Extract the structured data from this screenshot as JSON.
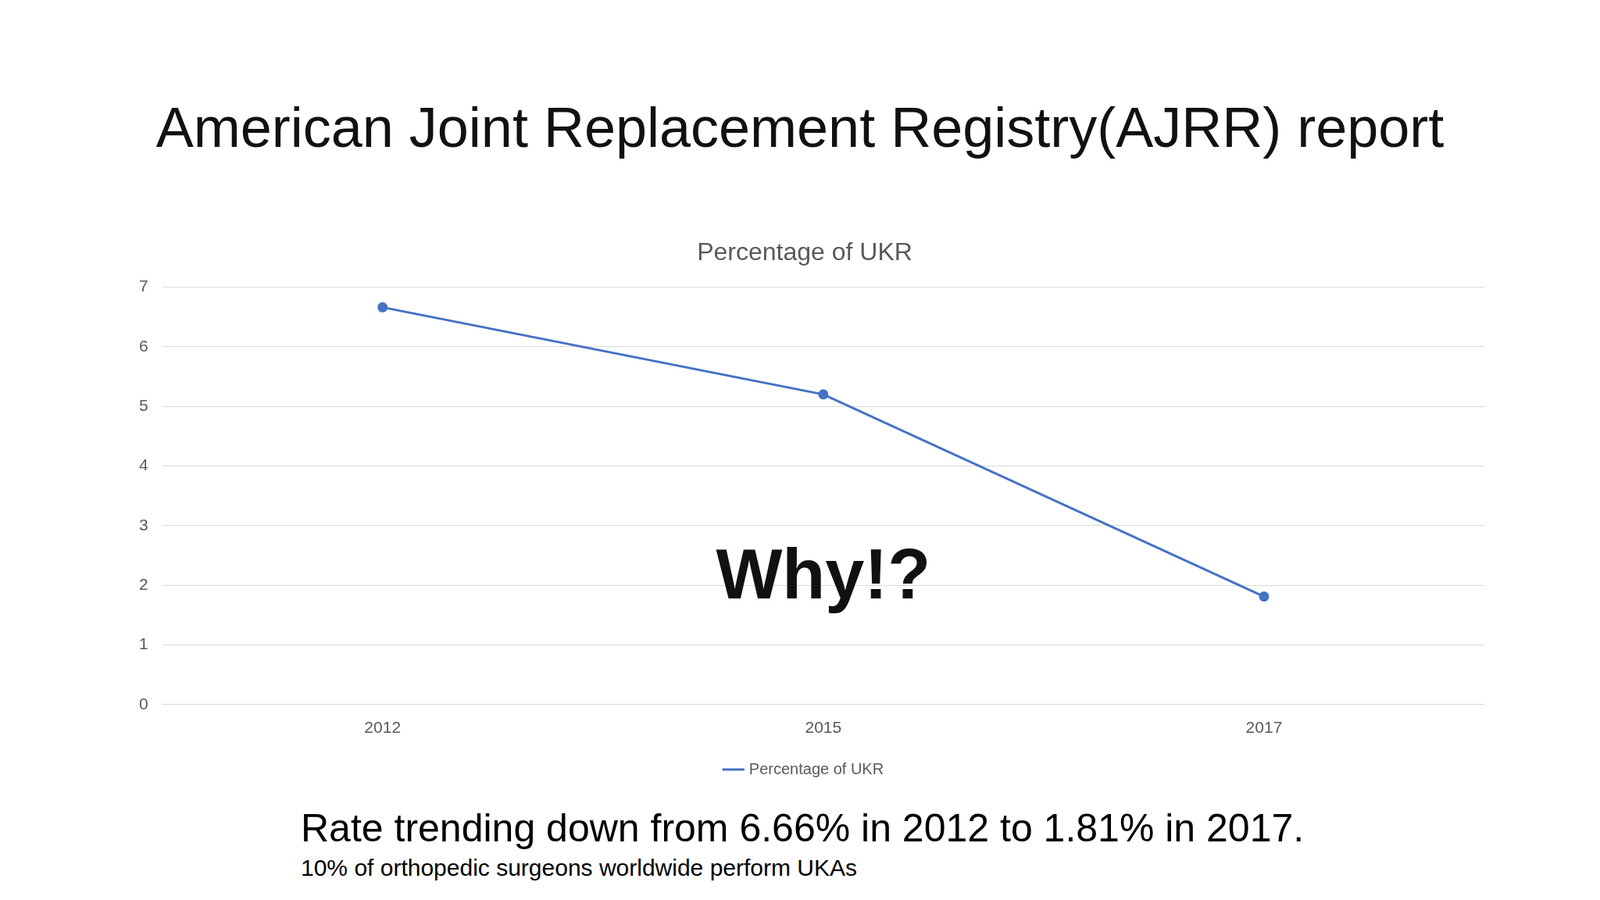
{
  "slide_title": "American Joint Replacement Registry(AJRR) report",
  "chart_data": {
    "type": "line",
    "title": "Percentage of UKR",
    "categories": [
      "2012",
      "2015",
      "2017"
    ],
    "series": [
      {
        "name": "Percentage of UKR",
        "color": "#4472c4",
        "values": [
          6.66,
          5.2,
          1.81
        ],
        "marker": "circle"
      }
    ],
    "ylim": [
      0,
      7
    ],
    "yticks": [
      0,
      1,
      2,
      3,
      4,
      5,
      6,
      7
    ],
    "grid": true,
    "legend": "bottom",
    "annotation": "Why!?"
  },
  "caption": "Rate trending down from 6.66% in 2012 to 1.81% in 2017.",
  "subcaption": "10% of orthopedic surgeons worldwide perform UKAs"
}
